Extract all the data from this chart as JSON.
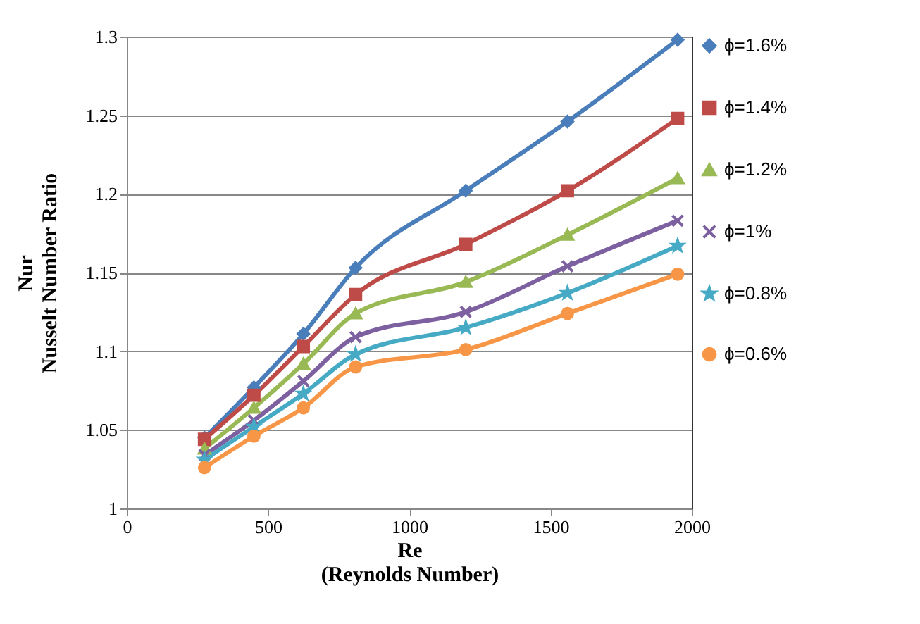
{
  "chart_data": {
    "type": "line",
    "xlabel": "Re\n(Reynolds Number)",
    "ylabel": "Nur\nNusselt Number Ratio",
    "x": [
      275,
      450,
      625,
      810,
      1200,
      1560,
      1950
    ],
    "xlim": [
      0,
      2000
    ],
    "xticks": [
      0,
      500,
      1000,
      1500,
      2000
    ],
    "ylim": [
      1,
      1.3
    ],
    "yticks": [
      1,
      1.05,
      1.1,
      1.15,
      1.2,
      1.25,
      1.3
    ],
    "grid": "y",
    "legend": "right",
    "series": [
      {
        "name": "ϕ=1.6%",
        "color": "#4a7ebb",
        "marker": "diamond",
        "values": [
          1.045,
          1.077,
          1.111,
          1.153,
          1.202,
          1.246,
          1.298
        ]
      },
      {
        "name": "ϕ=1.4%",
        "color": "#be4b48",
        "marker": "square",
        "values": [
          1.044,
          1.072,
          1.103,
          1.136,
          1.168,
          1.202,
          1.248
        ]
      },
      {
        "name": "ϕ=1.2%",
        "color": "#98b954",
        "marker": "triangle",
        "values": [
          1.038,
          1.064,
          1.092,
          1.124,
          1.144,
          1.174,
          1.21
        ]
      },
      {
        "name": "ϕ=1%",
        "color": "#7d60a0",
        "marker": "cross",
        "values": [
          1.034,
          1.056,
          1.081,
          1.109,
          1.125,
          1.154,
          1.183
        ]
      },
      {
        "name": "ϕ=0.8%",
        "color": "#46aac5",
        "marker": "star",
        "values": [
          1.031,
          1.052,
          1.073,
          1.098,
          1.115,
          1.137,
          1.167
        ]
      },
      {
        "name": "ϕ=0.6%",
        "color": "#f79646",
        "marker": "circle",
        "values": [
          1.026,
          1.046,
          1.064,
          1.09,
          1.101,
          1.124,
          1.149
        ]
      }
    ]
  }
}
